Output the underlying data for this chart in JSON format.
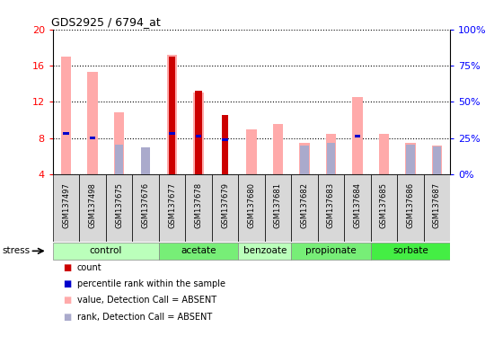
{
  "title": "GDS2925 / 6794_at",
  "samples": [
    "GSM137497",
    "GSM137498",
    "GSM137675",
    "GSM137676",
    "GSM137677",
    "GSM137678",
    "GSM137679",
    "GSM137680",
    "GSM137681",
    "GSM137682",
    "GSM137683",
    "GSM137684",
    "GSM137685",
    "GSM137686",
    "GSM137687"
  ],
  "groups": [
    {
      "name": "control",
      "color": "#bbffbb",
      "indices": [
        0,
        1,
        2,
        3
      ]
    },
    {
      "name": "acetate",
      "color": "#77ee77",
      "indices": [
        4,
        5,
        6
      ]
    },
    {
      "name": "benzoate",
      "color": "#bbffbb",
      "indices": [
        7,
        8
      ]
    },
    {
      "name": "propionate",
      "color": "#77ee77",
      "indices": [
        9,
        10,
        11
      ]
    },
    {
      "name": "sorbate",
      "color": "#44ee44",
      "indices": [
        12,
        13,
        14
      ]
    }
  ],
  "value_absent": [
    17.0,
    15.3,
    10.8,
    null,
    17.2,
    13.0,
    null,
    9.0,
    9.5,
    7.5,
    8.5,
    12.5,
    8.5,
    7.5,
    7.2
  ],
  "rank_absent": [
    null,
    null,
    7.3,
    7.0,
    null,
    null,
    null,
    null,
    null,
    7.2,
    7.5,
    null,
    null,
    7.3,
    7.1
  ],
  "count_red": [
    null,
    null,
    null,
    null,
    17.0,
    13.2,
    10.5,
    null,
    null,
    null,
    null,
    null,
    null,
    null,
    null
  ],
  "percentile_blue": [
    8.5,
    8.0,
    null,
    null,
    8.5,
    8.2,
    7.8,
    null,
    null,
    null,
    null,
    8.2,
    null,
    null,
    null
  ],
  "ylim_left": [
    4,
    20
  ],
  "ylim_right": [
    0,
    100
  ],
  "yticks_left": [
    4,
    8,
    12,
    16,
    20
  ],
  "yticks_right": [
    0,
    25,
    50,
    75,
    100
  ],
  "cell_bg": "#d8d8d8",
  "plot_bg": "#ffffff",
  "legend_colors": [
    "#cc0000",
    "#0000cc",
    "#ffaaaa",
    "#aaaacc"
  ],
  "legend_labels": [
    "count",
    "percentile rank within the sample",
    "value, Detection Call = ABSENT",
    "rank, Detection Call = ABSENT"
  ],
  "stress_label": "stress"
}
